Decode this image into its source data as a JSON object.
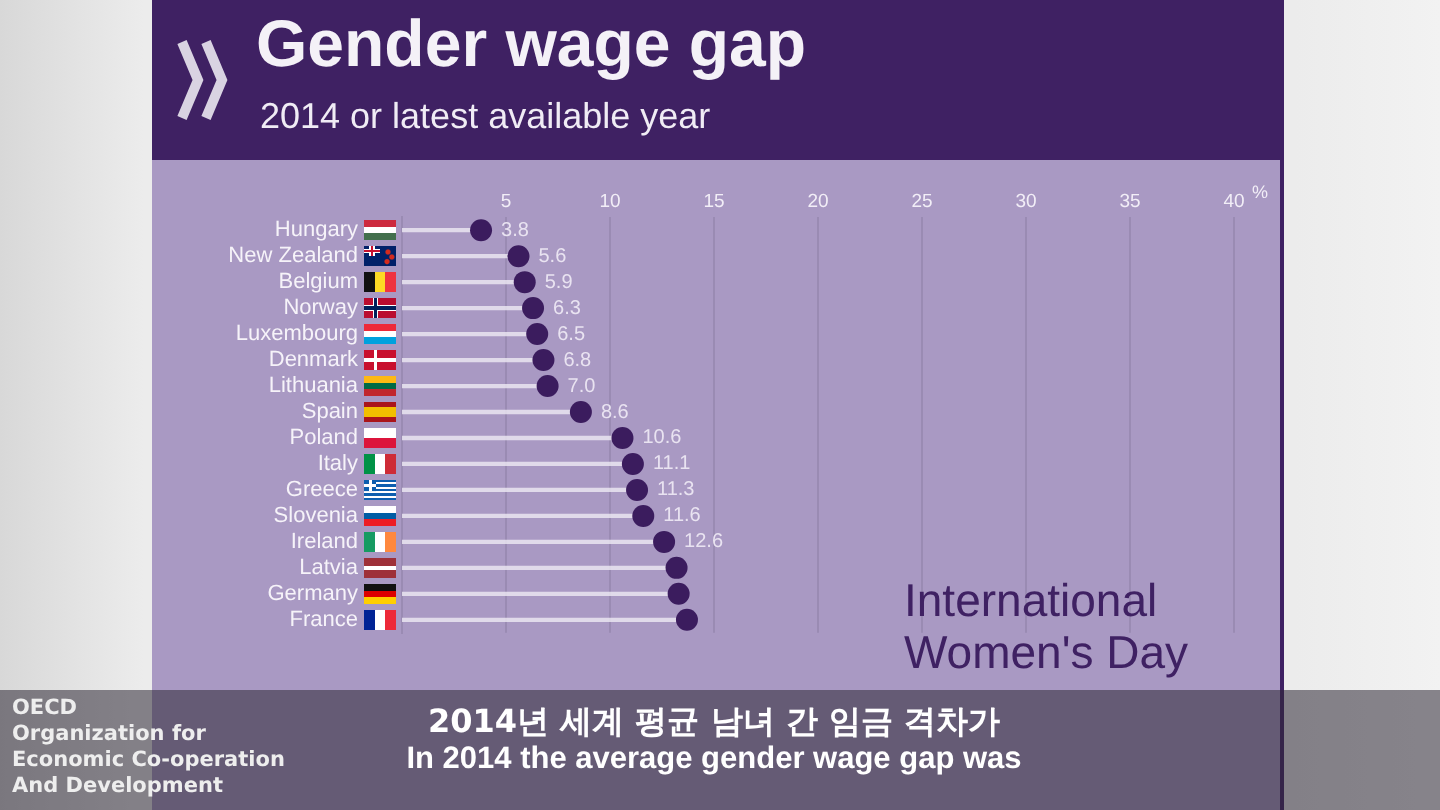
{
  "chart_data": {
    "type": "lollipop",
    "title": "Gender wage gap",
    "subtitle": "2014 or latest available year",
    "xlabel": "%",
    "orientation": "horizontal",
    "categories": [
      "Hungary",
      "New Zealand",
      "Belgium",
      "Norway",
      "Luxembourg",
      "Denmark",
      "Lithuania",
      "Spain",
      "Poland",
      "Italy",
      "Greece",
      "Slovenia",
      "Ireland",
      "Latvia",
      "Germany",
      "France"
    ],
    "values": [
      3.8,
      5.6,
      5.9,
      6.3,
      6.5,
      6.8,
      7.0,
      8.6,
      10.6,
      11.1,
      11.3,
      11.6,
      12.6,
      13.2,
      13.3,
      13.7
    ],
    "value_labels": [
      "3.8",
      "5.6",
      "5.9",
      "6.3",
      "6.5",
      "6.8",
      "7.0",
      "8.6",
      "10.6",
      "11.1",
      "11.3",
      "11.6",
      "12.6",
      null,
      null,
      null
    ],
    "color": "#3b1c5e",
    "xlim": [
      0,
      40
    ],
    "xticks": [
      5,
      10,
      15,
      20,
      25,
      30,
      35,
      40
    ],
    "grid": "x",
    "marker": "circle",
    "annotations": [
      "International Women's Day",
      "OECD",
      "Organization for Economic Co-operation And Development",
      "2014년 세계 평균 남녀 간 임금 격차가",
      "In 2014 the average gender wage gap was"
    ]
  }
}
